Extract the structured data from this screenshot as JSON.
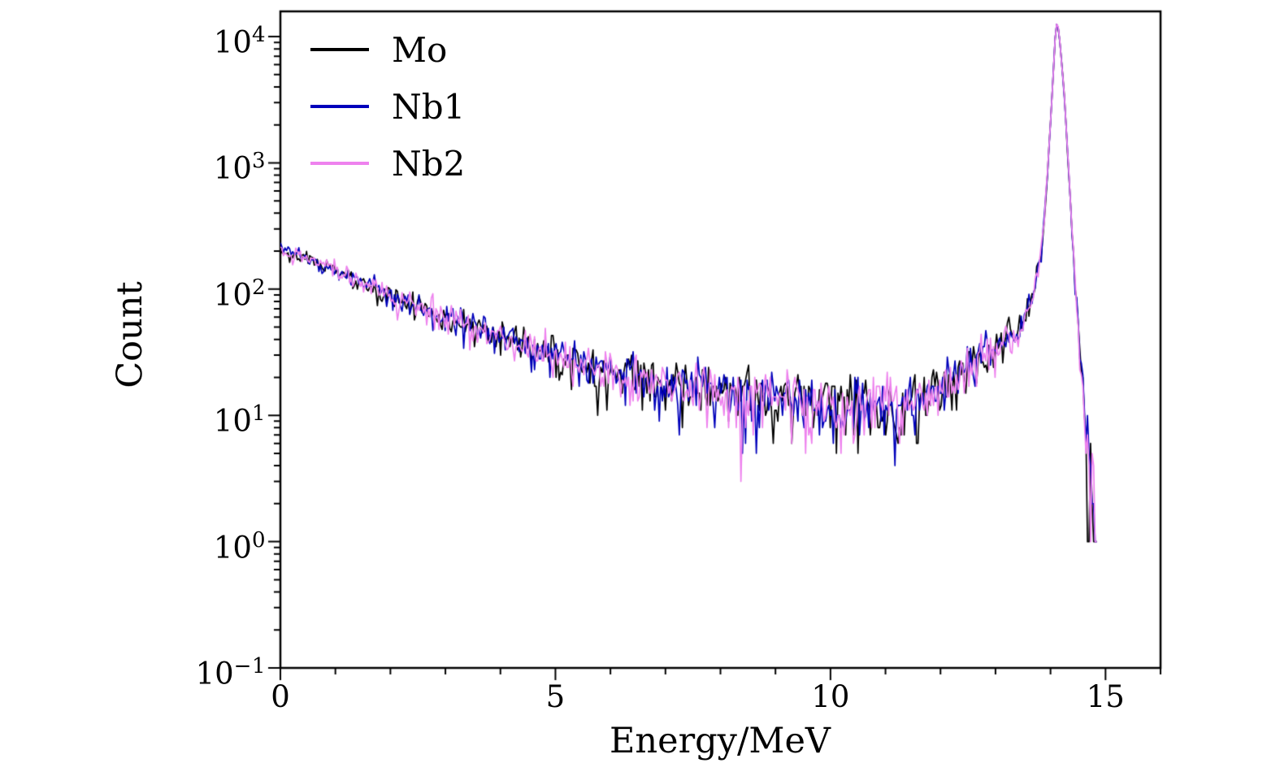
{
  "chart_data": {
    "type": "line",
    "title": "",
    "xlabel": "Energy/MeV",
    "ylabel": "Count",
    "grid": false,
    "legend_position": "top-left",
    "x_range": [
      0,
      16
    ],
    "x_major_ticks": [
      {
        "value": 0,
        "label": "0"
      },
      {
        "value": 5,
        "label": "5"
      },
      {
        "value": 10,
        "label": "10"
      },
      {
        "value": 15,
        "label": "15"
      }
    ],
    "x_minor_step": 1,
    "y_scale": "log",
    "y_range": [
      0.1,
      15849
    ],
    "y_ticks": [
      {
        "value": 0.1,
        "base": "10",
        "exp": "−1"
      },
      {
        "value": 1,
        "base": "10",
        "exp": "0"
      },
      {
        "value": 10,
        "base": "10",
        "exp": "1"
      },
      {
        "value": 100,
        "base": "10",
        "exp": "2"
      },
      {
        "value": 1000,
        "base": "10",
        "exp": "3"
      },
      {
        "value": 10000,
        "base": "10",
        "exp": "4"
      }
    ],
    "series": [
      {
        "name": "Mo",
        "color": "#000000",
        "seed": 11
      },
      {
        "name": "Nb1",
        "color": "#0000bb",
        "seed": 23
      },
      {
        "name": "Nb2",
        "color": "#ee82ee",
        "seed": 47
      }
    ],
    "peak": {
      "x": 14.1,
      "count": 13000
    },
    "bin_width_mev": 0.028,
    "x_data_max": 14.85,
    "noise_model": "poisson",
    "profile_points": {
      "x": [
        0,
        0.3,
        0.6,
        1.0,
        1.5,
        2.0,
        2.5,
        3.0,
        3.5,
        4.0,
        4.5,
        5.0,
        5.5,
        6.0,
        6.5,
        7.0,
        7.5,
        8.0,
        8.5,
        9.0,
        9.5,
        10.0,
        10.5,
        11.0,
        11.5,
        12.0,
        12.3,
        12.6,
        13.0,
        13.3,
        13.5,
        13.7,
        13.85,
        13.95,
        14.05,
        14.1,
        14.15,
        14.25,
        14.35,
        14.45,
        14.55,
        14.65,
        14.75,
        14.85
      ],
      "count": [
        205,
        185,
        168,
        140,
        112,
        88,
        73,
        60,
        50,
        42,
        35,
        29,
        26,
        22,
        20,
        18,
        17,
        15.5,
        14.5,
        13.5,
        13,
        12.5,
        12,
        12,
        13,
        16,
        20,
        25,
        33,
        42,
        55,
        95,
        220,
        900,
        5000,
        13000,
        11500,
        3500,
        600,
        110,
        24,
        6,
        2.2,
        1.1
      ]
    }
  }
}
